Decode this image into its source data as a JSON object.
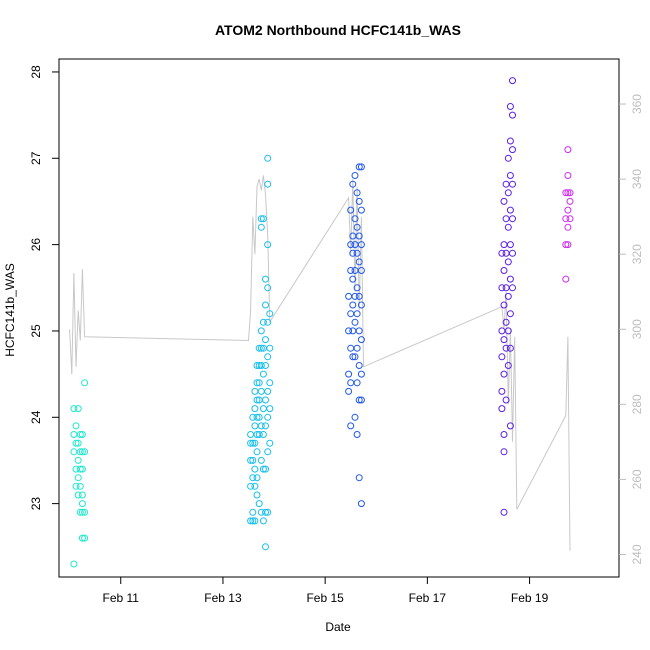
{
  "chart_data": {
    "type": "scatter",
    "title": "ATOM2 Northbound HCFC141b_WAS",
    "xlabel": "Date",
    "ylabel": "HCFC141b_WAS",
    "xlim": [
      "Feb 09 19:00",
      "Feb 20 18:00"
    ],
    "ylim": [
      22.15,
      28.15
    ],
    "y2lim": [
      234,
      372
    ],
    "x_ticks": [
      "Feb 11",
      "Feb 13",
      "Feb 15",
      "Feb 17",
      "Feb 19"
    ],
    "y_ticks": [
      "23",
      "24",
      "25",
      "26",
      "27",
      "28"
    ],
    "y2_ticks": [
      "240",
      "260",
      "280",
      "300",
      "320",
      "340",
      "360"
    ],
    "grid": false,
    "legend": "none",
    "colors": {
      "points_gradient": [
        "#00ffcc",
        "#00ccff",
        "#0066ff",
        "#0000ff",
        "#6600ff",
        "#ff00ff"
      ],
      "secondary_line": "#c8c8c8"
    },
    "series": [
      {
        "color": "#1fe8cf",
        "points": [
          [
            "2016-02-10 02:00",
            23.8
          ],
          [
            "2016-02-10 02:00",
            24.1
          ],
          [
            "2016-02-10 02:00",
            23.6
          ],
          [
            "2016-02-10 02:00",
            22.3
          ],
          [
            "2016-02-10 03:00",
            23.9
          ],
          [
            "2016-02-10 03:00",
            23.7
          ],
          [
            "2016-02-10 03:00",
            23.4
          ],
          [
            "2016-02-10 03:00",
            23.2
          ],
          [
            "2016-02-10 04:00",
            24.1
          ],
          [
            "2016-02-10 04:00",
            23.7
          ],
          [
            "2016-02-10 04:00",
            23.5
          ],
          [
            "2016-02-10 04:00",
            23.3
          ],
          [
            "2016-02-10 04:00",
            23.1
          ],
          [
            "2016-02-10 05:00",
            23.8
          ],
          [
            "2016-02-10 05:00",
            23.6
          ],
          [
            "2016-02-10 05:00",
            23.4
          ],
          [
            "2016-02-10 05:00",
            23.2
          ],
          [
            "2016-02-10 05:00",
            22.9
          ],
          [
            "2016-02-10 06:00",
            23.8
          ],
          [
            "2016-02-10 06:00",
            23.6
          ],
          [
            "2016-02-10 06:00",
            23.4
          ],
          [
            "2016-02-10 06:00",
            23.1
          ],
          [
            "2016-02-10 06:00",
            23.0
          ],
          [
            "2016-02-10 06:00",
            22.6
          ],
          [
            "2016-02-10 06:00",
            22.9
          ],
          [
            "2016-02-10 07:00",
            24.4
          ],
          [
            "2016-02-10 07:00",
            23.6
          ],
          [
            "2016-02-10 07:00",
            22.6
          ],
          [
            "2016-02-10 07:00",
            22.9
          ]
        ]
      },
      {
        "color": "#16bfee",
        "points": [
          [
            "2016-02-13 13:00",
            23.5
          ],
          [
            "2016-02-13 13:00",
            23.7
          ],
          [
            "2016-02-13 13:00",
            23.8
          ],
          [
            "2016-02-13 13:00",
            23.2
          ],
          [
            "2016-02-13 13:00",
            22.8
          ],
          [
            "2016-02-13 14:00",
            24.0
          ],
          [
            "2016-02-13 14:00",
            23.7
          ],
          [
            "2016-02-13 14:00",
            23.5
          ],
          [
            "2016-02-13 14:00",
            23.3
          ],
          [
            "2016-02-13 14:00",
            22.9
          ],
          [
            "2016-02-13 14:00",
            22.8
          ],
          [
            "2016-02-13 15:00",
            24.3
          ],
          [
            "2016-02-13 15:00",
            24.1
          ],
          [
            "2016-02-13 15:00",
            23.9
          ],
          [
            "2016-02-13 15:00",
            23.7
          ],
          [
            "2016-02-13 15:00",
            23.4
          ],
          [
            "2016-02-13 15:00",
            23.2
          ],
          [
            "2016-02-13 15:00",
            22.8
          ],
          [
            "2016-02-13 16:00",
            24.6
          ],
          [
            "2016-02-13 16:00",
            24.4
          ],
          [
            "2016-02-13 16:00",
            24.2
          ],
          [
            "2016-02-13 16:00",
            24.0
          ],
          [
            "2016-02-13 16:00",
            23.8
          ],
          [
            "2016-02-13 16:00",
            23.6
          ],
          [
            "2016-02-13 16:00",
            23.3
          ],
          [
            "2016-02-13 16:00",
            23.1
          ],
          [
            "2016-02-13 17:00",
            24.8
          ],
          [
            "2016-02-13 17:00",
            24.6
          ],
          [
            "2016-02-13 17:00",
            24.4
          ],
          [
            "2016-02-13 17:00",
            24.2
          ],
          [
            "2016-02-13 17:00",
            24.0
          ],
          [
            "2016-02-13 17:00",
            23.8
          ],
          [
            "2016-02-13 17:00",
            23.0
          ],
          [
            "2016-02-13 18:00",
            26.2
          ],
          [
            "2016-02-13 18:00",
            26.3
          ],
          [
            "2016-02-13 18:00",
            25.0
          ],
          [
            "2016-02-13 18:00",
            24.8
          ],
          [
            "2016-02-13 18:00",
            24.6
          ],
          [
            "2016-02-13 18:00",
            24.3
          ],
          [
            "2016-02-13 18:00",
            23.9
          ],
          [
            "2016-02-13 18:00",
            23.5
          ],
          [
            "2016-02-13 18:00",
            22.9
          ],
          [
            "2016-02-13 19:00",
            26.3
          ],
          [
            "2016-02-13 19:00",
            25.1
          ],
          [
            "2016-02-13 19:00",
            24.8
          ],
          [
            "2016-02-13 19:00",
            24.5
          ],
          [
            "2016-02-13 19:00",
            24.1
          ],
          [
            "2016-02-13 19:00",
            23.8
          ],
          [
            "2016-02-13 19:00",
            23.4
          ],
          [
            "2016-02-13 19:00",
            22.8
          ],
          [
            "2016-02-13 20:00",
            25.6
          ],
          [
            "2016-02-13 20:00",
            25.3
          ],
          [
            "2016-02-13 20:00",
            24.9
          ],
          [
            "2016-02-13 20:00",
            24.6
          ],
          [
            "2016-02-13 20:00",
            24.2
          ],
          [
            "2016-02-13 20:00",
            23.9
          ],
          [
            "2016-02-13 20:00",
            23.4
          ],
          [
            "2016-02-13 20:00",
            22.9
          ],
          [
            "2016-02-13 20:00",
            22.5
          ],
          [
            "2016-02-13 21:00",
            27.0
          ],
          [
            "2016-02-13 21:00",
            26.7
          ],
          [
            "2016-02-13 21:00",
            26.0
          ],
          [
            "2016-02-13 21:00",
            25.5
          ],
          [
            "2016-02-13 21:00",
            25.1
          ],
          [
            "2016-02-13 21:00",
            24.7
          ],
          [
            "2016-02-13 21:00",
            24.3
          ],
          [
            "2016-02-13 21:00",
            24.0
          ],
          [
            "2016-02-13 21:00",
            23.6
          ],
          [
            "2016-02-13 21:00",
            22.9
          ],
          [
            "2016-02-13 22:00",
            25.2
          ],
          [
            "2016-02-13 22:00",
            24.8
          ],
          [
            "2016-02-13 22:00",
            24.4
          ],
          [
            "2016-02-13 22:00",
            24.1
          ],
          [
            "2016-02-13 22:00",
            23.7
          ]
        ]
      },
      {
        "color": "#1f57f0",
        "points": [
          [
            "2016-02-15 11:00",
            25.4
          ],
          [
            "2016-02-15 11:00",
            25.0
          ],
          [
            "2016-02-15 11:00",
            24.5
          ],
          [
            "2016-02-15 11:00",
            24.3
          ],
          [
            "2016-02-15 12:00",
            26.4
          ],
          [
            "2016-02-15 12:00",
            26.0
          ],
          [
            "2016-02-15 12:00",
            25.7
          ],
          [
            "2016-02-15 12:00",
            25.2
          ],
          [
            "2016-02-15 12:00",
            24.8
          ],
          [
            "2016-02-15 12:00",
            24.4
          ],
          [
            "2016-02-15 12:00",
            23.9
          ],
          [
            "2016-02-15 13:00",
            26.7
          ],
          [
            "2016-02-15 13:00",
            26.1
          ],
          [
            "2016-02-15 13:00",
            25.9
          ],
          [
            "2016-02-15 13:00",
            25.6
          ],
          [
            "2016-02-15 13:00",
            25.3
          ],
          [
            "2016-02-15 13:00",
            25.0
          ],
          [
            "2016-02-15 13:00",
            24.7
          ],
          [
            "2016-02-15 14:00",
            26.8
          ],
          [
            "2016-02-15 14:00",
            26.3
          ],
          [
            "2016-02-15 14:00",
            26.0
          ],
          [
            "2016-02-15 14:00",
            25.7
          ],
          [
            "2016-02-15 14:00",
            25.4
          ],
          [
            "2016-02-15 14:00",
            25.1
          ],
          [
            "2016-02-15 14:00",
            24.7
          ],
          [
            "2016-02-15 14:00",
            24.0
          ],
          [
            "2016-02-15 15:00",
            26.6
          ],
          [
            "2016-02-15 15:00",
            26.2
          ],
          [
            "2016-02-15 15:00",
            25.9
          ],
          [
            "2016-02-15 15:00",
            25.5
          ],
          [
            "2016-02-15 15:00",
            25.2
          ],
          [
            "2016-02-15 15:00",
            24.8
          ],
          [
            "2016-02-15 15:00",
            24.4
          ],
          [
            "2016-02-15 15:00",
            23.8
          ],
          [
            "2016-02-15 16:00",
            26.9
          ],
          [
            "2016-02-15 16:00",
            26.5
          ],
          [
            "2016-02-15 16:00",
            26.1
          ],
          [
            "2016-02-15 16:00",
            25.8
          ],
          [
            "2016-02-15 16:00",
            25.4
          ],
          [
            "2016-02-15 16:00",
            25.0
          ],
          [
            "2016-02-15 16:00",
            24.6
          ],
          [
            "2016-02-15 16:00",
            24.2
          ],
          [
            "2016-02-15 16:00",
            23.3
          ],
          [
            "2016-02-15 17:00",
            26.9
          ],
          [
            "2016-02-15 17:00",
            26.4
          ],
          [
            "2016-02-15 17:00",
            26.0
          ],
          [
            "2016-02-15 17:00",
            25.7
          ],
          [
            "2016-02-15 17:00",
            25.3
          ],
          [
            "2016-02-15 17:00",
            24.9
          ],
          [
            "2016-02-15 17:00",
            24.5
          ],
          [
            "2016-02-15 17:00",
            24.2
          ],
          [
            "2016-02-15 17:00",
            23.0
          ]
        ]
      },
      {
        "color": "#5a1ee8",
        "points": [
          [
            "2016-02-18 11:00",
            25.9
          ],
          [
            "2016-02-18 11:00",
            25.5
          ],
          [
            "2016-02-18 11:00",
            25.0
          ],
          [
            "2016-02-18 11:00",
            24.7
          ],
          [
            "2016-02-18 11:00",
            24.3
          ],
          [
            "2016-02-18 11:00",
            24.1
          ],
          [
            "2016-02-18 12:00",
            26.5
          ],
          [
            "2016-02-18 12:00",
            26.0
          ],
          [
            "2016-02-18 12:00",
            25.7
          ],
          [
            "2016-02-18 12:00",
            25.3
          ],
          [
            "2016-02-18 12:00",
            24.9
          ],
          [
            "2016-02-18 12:00",
            24.5
          ],
          [
            "2016-02-18 12:00",
            23.8
          ],
          [
            "2016-02-18 12:00",
            23.6
          ],
          [
            "2016-02-18 12:00",
            22.9
          ],
          [
            "2016-02-18 13:00",
            26.7
          ],
          [
            "2016-02-18 13:00",
            26.3
          ],
          [
            "2016-02-18 13:00",
            25.9
          ],
          [
            "2016-02-18 13:00",
            25.5
          ],
          [
            "2016-02-18 13:00",
            25.1
          ],
          [
            "2016-02-18 13:00",
            24.8
          ],
          [
            "2016-02-18 13:00",
            24.2
          ],
          [
            "2016-02-18 14:00",
            27.0
          ],
          [
            "2016-02-18 14:00",
            26.6
          ],
          [
            "2016-02-18 14:00",
            26.2
          ],
          [
            "2016-02-18 14:00",
            25.8
          ],
          [
            "2016-02-18 14:00",
            25.4
          ],
          [
            "2016-02-18 14:00",
            25.0
          ],
          [
            "2016-02-18 14:00",
            24.6
          ],
          [
            "2016-02-18 15:00",
            27.6
          ],
          [
            "2016-02-18 15:00",
            27.2
          ],
          [
            "2016-02-18 15:00",
            26.8
          ],
          [
            "2016-02-18 15:00",
            26.4
          ],
          [
            "2016-02-18 15:00",
            26.0
          ],
          [
            "2016-02-18 15:00",
            25.6
          ],
          [
            "2016-02-18 15:00",
            25.2
          ],
          [
            "2016-02-18 15:00",
            24.8
          ],
          [
            "2016-02-18 15:00",
            23.9
          ],
          [
            "2016-02-18 16:00",
            27.9
          ],
          [
            "2016-02-18 16:00",
            27.5
          ],
          [
            "2016-02-18 16:00",
            27.1
          ],
          [
            "2016-02-18 16:00",
            26.7
          ],
          [
            "2016-02-18 16:00",
            26.3
          ],
          [
            "2016-02-18 16:00",
            25.9
          ],
          [
            "2016-02-18 16:00",
            25.5
          ]
        ]
      },
      {
        "color": "#cf2cf0",
        "points": [
          [
            "2016-02-19 17:00",
            26.6
          ],
          [
            "2016-02-19 17:00",
            26.3
          ],
          [
            "2016-02-19 17:00",
            26.0
          ],
          [
            "2016-02-19 17:00",
            25.6
          ],
          [
            "2016-02-19 18:00",
            27.1
          ],
          [
            "2016-02-19 18:00",
            26.8
          ],
          [
            "2016-02-19 18:00",
            26.6
          ],
          [
            "2016-02-19 18:00",
            26.4
          ],
          [
            "2016-02-19 18:00",
            26.2
          ],
          [
            "2016-02-19 18:00",
            26.0
          ],
          [
            "2016-02-19 19:00",
            26.6
          ],
          [
            "2016-02-19 19:00",
            26.5
          ],
          [
            "2016-02-19 19:00",
            26.3
          ]
        ]
      }
    ],
    "secondary_series": {
      "axis": "right",
      "points": [
        [
          "2016-02-10 00:00",
          300
        ],
        [
          "2016-02-10 01:00",
          288
        ],
        [
          "2016-02-10 02:00",
          315
        ],
        [
          "2016-02-10 03:00",
          290
        ],
        [
          "2016-02-10 04:00",
          305
        ],
        [
          "2016-02-10 05:00",
          297
        ],
        [
          "2016-02-10 06:00",
          316
        ],
        [
          "2016-02-10 07:00",
          298
        ],
        [
          "2016-02-13 12:00",
          297
        ],
        [
          "2016-02-13 13:00",
          305
        ],
        [
          "2016-02-13 14:00",
          330
        ],
        [
          "2016-02-13 15:00",
          320
        ],
        [
          "2016-02-13 16:00",
          338
        ],
        [
          "2016-02-13 17:00",
          340
        ],
        [
          "2016-02-13 18:00",
          337
        ],
        [
          "2016-02-13 19:00",
          341
        ],
        [
          "2016-02-13 20:00",
          336
        ],
        [
          "2016-02-13 21:00",
          325
        ],
        [
          "2016-02-13 22:00",
          302
        ],
        [
          "2016-02-15 11:00",
          335
        ],
        [
          "2016-02-15 12:00",
          320
        ],
        [
          "2016-02-15 13:00",
          340
        ],
        [
          "2016-02-15 14:00",
          310
        ],
        [
          "2016-02-15 15:00",
          338
        ],
        [
          "2016-02-15 16:00",
          305
        ],
        [
          "2016-02-15 17:00",
          330
        ],
        [
          "2016-02-15 18:00",
          290
        ],
        [
          "2016-02-18 11:00",
          306
        ],
        [
          "2016-02-18 12:00",
          300
        ],
        [
          "2016-02-18 13:00",
          310
        ],
        [
          "2016-02-18 14:00",
          280
        ],
        [
          "2016-02-18 15:00",
          300
        ],
        [
          "2016-02-18 16:00",
          270
        ],
        [
          "2016-02-18 17:00",
          298
        ],
        [
          "2016-02-18 18:00",
          252
        ],
        [
          "2016-02-19 17:00",
          277
        ],
        [
          "2016-02-19 18:00",
          298
        ],
        [
          "2016-02-19 19:00",
          241
        ]
      ]
    }
  }
}
